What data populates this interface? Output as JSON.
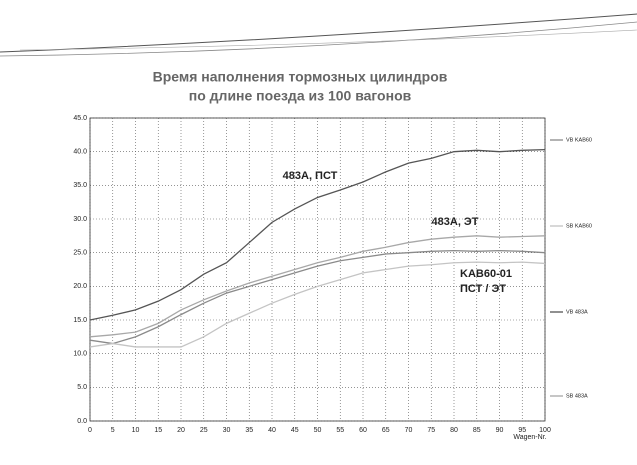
{
  "chart_data": {
    "type": "line",
    "title": "Время наполнения тормозных цилиндров",
    "subtitle": "по длине поезда из 100 вагонов",
    "x_label": "Wagen-Nr.",
    "annotations": [
      "483A, ПСТ",
      "483A, ЭТ",
      "KAB60-01",
      "ПСТ / ЭТ"
    ],
    "x": [
      0,
      5,
      10,
      15,
      20,
      25,
      30,
      35,
      40,
      45,
      50,
      55,
      60,
      65,
      70,
      75,
      80,
      85,
      90,
      95,
      100
    ],
    "series": [
      {
        "name": "VB KAB60",
        "color": "#8a8a8a",
        "values": [
          12,
          11.5,
          12.5,
          14,
          15.8,
          17.5,
          19,
          20,
          21,
          22,
          23,
          23.8,
          24.3,
          24.8,
          25,
          25.2,
          25.3,
          25.2,
          25.3,
          25.2,
          25
        ]
      },
      {
        "name": "SB KAB60",
        "color": "#c4c4c4",
        "values": [
          11,
          11.5,
          11,
          11,
          11,
          12.5,
          14.5,
          16,
          17.5,
          18.8,
          20,
          21,
          22,
          22.5,
          23,
          23.2,
          23.5,
          23.6,
          23.5,
          23.6,
          23.4
        ]
      },
      {
        "name": "VB 483A",
        "color": "#555555",
        "values": [
          15,
          15.7,
          16.5,
          17.8,
          19.5,
          21.8,
          23.5,
          26.5,
          29.5,
          31.5,
          33.2,
          34.3,
          35.5,
          37,
          38.3,
          39,
          40,
          40.2,
          40,
          40.2,
          40.3
        ]
      },
      {
        "name": "SB 483A",
        "color": "#a8a8a8",
        "values": [
          12.5,
          12.8,
          13.2,
          14.5,
          16.5,
          18,
          19.3,
          20.5,
          21.5,
          22.5,
          23.5,
          24.3,
          25.2,
          25.8,
          26.5,
          27,
          27.3,
          27.5,
          27.3,
          27.4,
          27.5
        ]
      }
    ],
    "xlim": [
      0,
      100
    ],
    "xticks": [
      0,
      5,
      10,
      15,
      20,
      25,
      30,
      35,
      40,
      45,
      50,
      55,
      60,
      65,
      70,
      75,
      80,
      85,
      90,
      95,
      100
    ],
    "ylim": [
      0,
      45
    ],
    "yticks": [
      {
        "value": 0,
        "label": "0.0"
      },
      {
        "value": 5,
        "label": "5.0"
      },
      {
        "value": 10,
        "label": "10.0"
      },
      {
        "value": 15,
        "label": "15.0"
      },
      {
        "value": 20,
        "label": "20.0"
      },
      {
        "value": 25,
        "label": "25.0"
      },
      {
        "value": 30,
        "label": "30.0"
      },
      {
        "value": 35,
        "label": "35.0"
      },
      {
        "value": 40,
        "label": "40.0"
      },
      {
        "value": 45,
        "label": "45.0"
      }
    ],
    "grid": true
  }
}
